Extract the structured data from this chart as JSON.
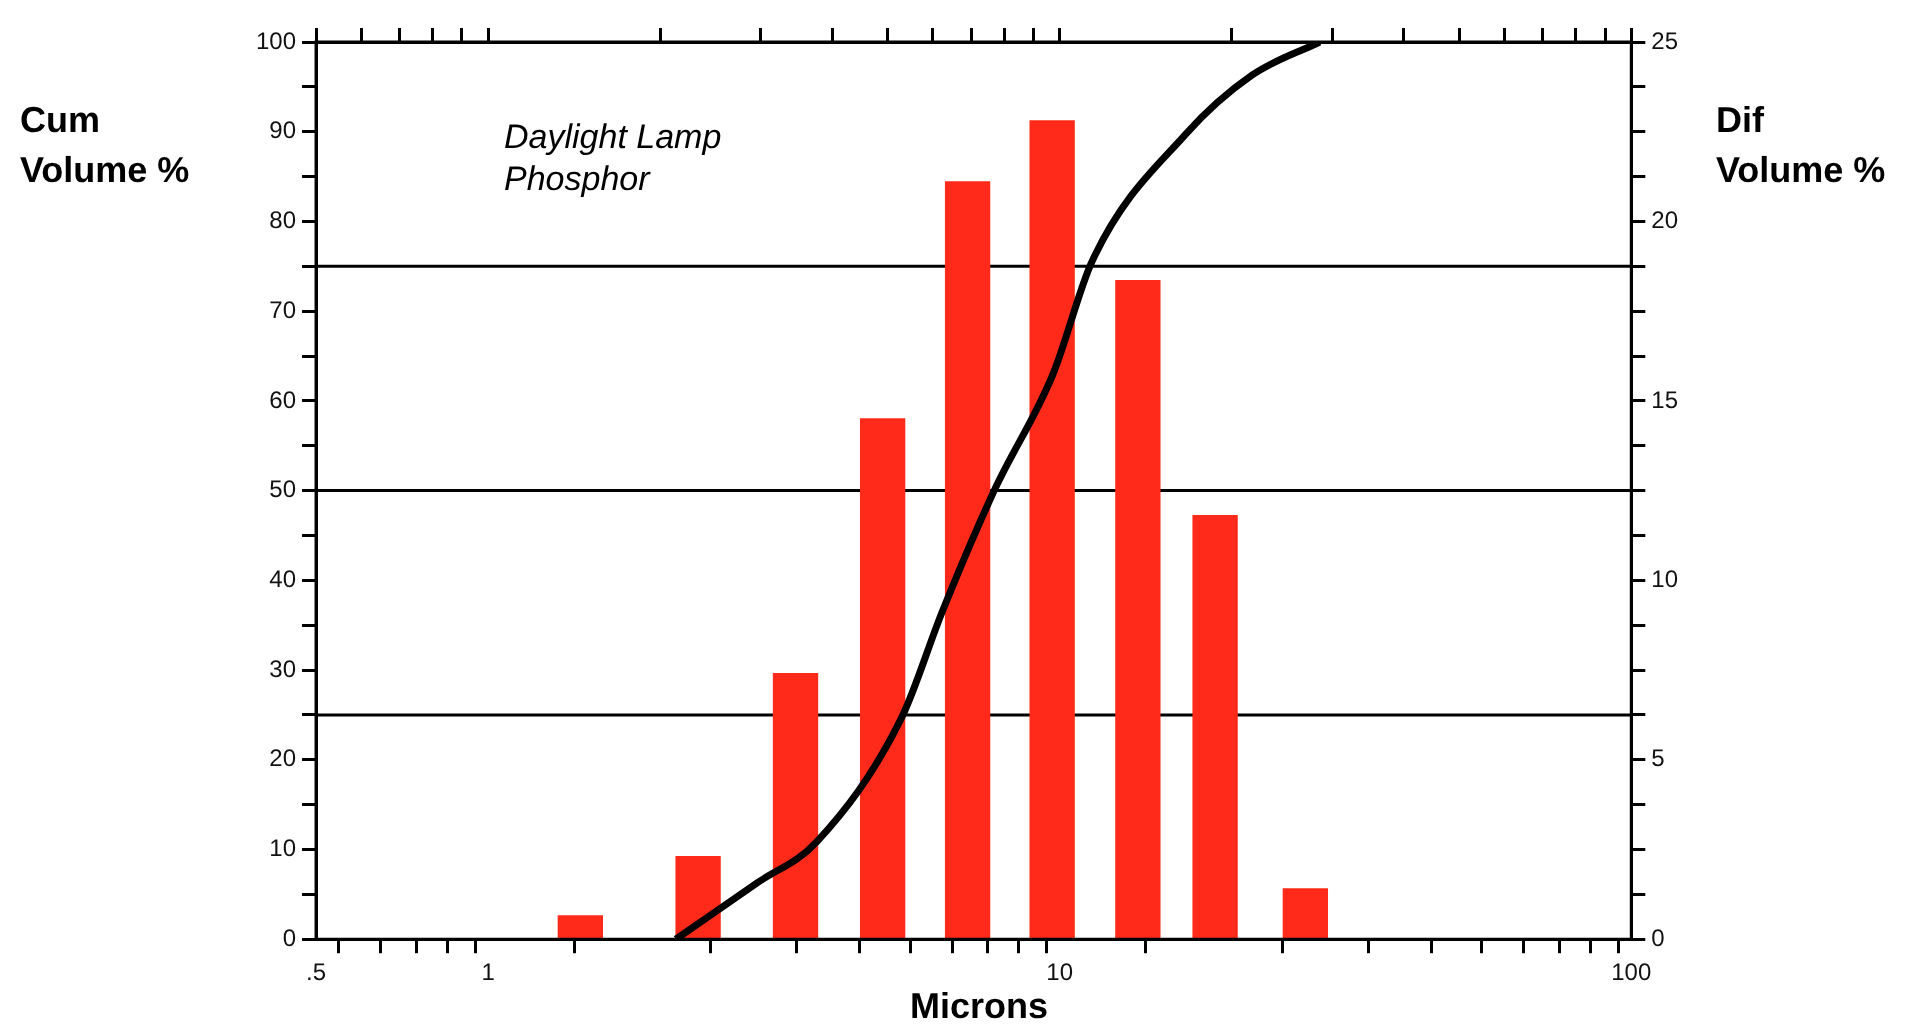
{
  "chart_data": {
    "type": "bar",
    "xlabel": "Microns",
    "ylabel": "Cum Volume %",
    "y2label": "Dif Volume %",
    "annotations": [
      "Daylight Lamp Phosphor"
    ],
    "log": "x",
    "xlim": [
      0.5,
      100
    ],
    "xticks": [
      {
        "value": 0.5,
        "label": ".5"
      },
      {
        "value": 0.6,
        "label": null
      },
      {
        "value": 0.7,
        "label": null
      },
      {
        "value": 0.8,
        "label": null
      },
      {
        "value": 0.9,
        "label": null
      },
      1,
      {
        "value": 2,
        "label": null
      },
      {
        "value": 3,
        "label": null
      },
      {
        "value": 4,
        "label": null
      },
      {
        "value": 5,
        "label": null
      },
      {
        "value": 6,
        "label": null
      },
      {
        "value": 7,
        "label": null
      },
      {
        "value": 8,
        "label": null
      },
      {
        "value": 9,
        "label": null
      },
      10,
      {
        "value": 20,
        "label": null
      },
      {
        "value": 30,
        "label": null
      },
      {
        "value": 40,
        "label": null
      },
      {
        "value": 50,
        "label": null
      },
      {
        "value": 60,
        "label": null
      },
      {
        "value": 70,
        "label": null
      },
      {
        "value": 80,
        "label": null
      },
      {
        "value": 90,
        "label": null
      },
      100
    ],
    "ylim": [
      0,
      100
    ],
    "yticks": [
      0,
      {
        "value": 5,
        "label": null
      },
      10,
      {
        "value": 15,
        "label": null
      },
      20,
      {
        "value": 25,
        "label": null
      },
      30,
      {
        "value": 35,
        "label": null
      },
      40,
      {
        "value": 45,
        "label": null
      },
      50,
      {
        "value": 55,
        "label": null
      },
      60,
      {
        "value": 65,
        "label": null
      },
      70,
      {
        "value": 75,
        "label": null
      },
      80,
      {
        "value": 85,
        "label": null
      },
      90,
      {
        "value": 95,
        "label": null
      },
      100
    ],
    "y2lim": [
      0,
      25
    ],
    "y2ticks": [
      0,
      {
        "value": 1.25,
        "label": null
      },
      {
        "value": 2.5,
        "label": null
      },
      {
        "value": 3.75,
        "label": null
      },
      5,
      {
        "value": 6.25,
        "label": null
      },
      {
        "value": 7.5,
        "label": null
      },
      {
        "value": 8.75,
        "label": null
      },
      10,
      {
        "value": 11.25,
        "label": null
      },
      {
        "value": 12.5,
        "label": null
      },
      {
        "value": 13.75,
        "label": null
      },
      15,
      {
        "value": 16.25,
        "label": null
      },
      {
        "value": 17.5,
        "label": null
      },
      {
        "value": 18.75,
        "label": null
      },
      20,
      {
        "value": 21.25,
        "label": null
      },
      {
        "value": 22.5,
        "label": null
      },
      {
        "value": 23.75,
        "label": null
      },
      25
    ],
    "ref_lines": [
      {
        "axis": "y",
        "value": 25,
        "color": "#000000"
      },
      {
        "axis": "y",
        "value": 50,
        "color": "#000000"
      },
      {
        "axis": "y",
        "value": 75,
        "color": "#000000"
      }
    ],
    "grid": false,
    "legend": false,
    "series": [
      {
        "axis": "y2",
        "color": "#ff2a1a",
        "x": [
          1.45,
          2.33,
          3.45,
          4.9,
          6.9,
          9.7,
          13.7,
          18.7,
          26.9
        ],
        "values": [
          0.65,
          2.3,
          7.4,
          14.5,
          21.1,
          22.8,
          18.35,
          11.8,
          1.4
        ]
      },
      {
        "type": "line",
        "axis": "y",
        "color": "#000000",
        "marker": "none",
        "line_style": "solid",
        "x": [
          2.13,
          2.96,
          3.75,
          5.29,
          6.23,
          7.68,
          9.75,
          11.4,
          16.6,
          21.7,
          28.5
        ],
        "values": [
          0,
          6.3,
          10.8,
          24.7,
          36.5,
          50,
          63.1,
          75.6,
          89.7,
          96.3,
          100
        ]
      }
    ]
  }
}
